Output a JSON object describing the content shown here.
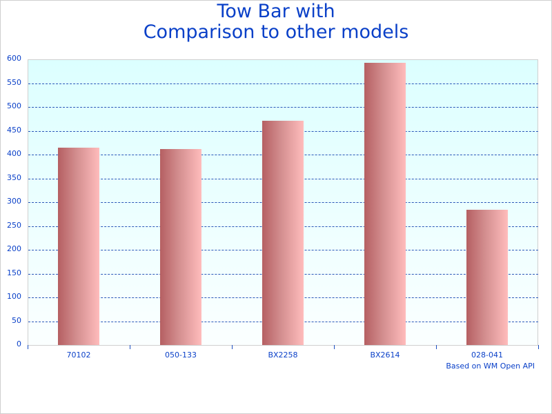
{
  "chart": {
    "title_line1": "Tow Bar with",
    "title_line2": "Comparison to other models",
    "credit": "Based on WM Open API",
    "yticks": [
      "0",
      "50",
      "100",
      "150",
      "200",
      "250",
      "300",
      "350",
      "400",
      "450",
      "500",
      "550",
      "600"
    ],
    "bar_color_dark": "#b55f62",
    "bar_color_light": "#ffbcbc",
    "text_color": "#0a40c8"
  },
  "chart_data": {
    "type": "bar",
    "title": "Tow Bar with Comparison to other models",
    "xlabel": "",
    "ylabel": "",
    "categories": [
      "70102",
      "050-133",
      "BX2258",
      "BX2614",
      "028-041"
    ],
    "values": [
      415,
      412,
      471,
      593,
      284
    ],
    "ylim": [
      0,
      600
    ],
    "yticks": [
      0,
      50,
      100,
      150,
      200,
      250,
      300,
      350,
      400,
      450,
      500,
      550,
      600
    ],
    "grid": true,
    "legend": null,
    "annotation": "Based on WM Open API"
  }
}
